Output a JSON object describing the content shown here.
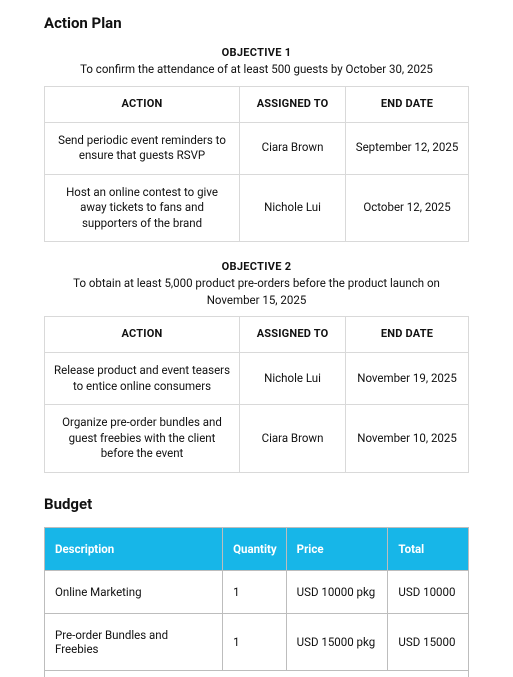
{
  "actionPlan": {
    "title": "Action Plan",
    "columns": {
      "action": "ACTION",
      "assigned": "ASSIGNED TO",
      "end": "END DATE"
    },
    "objectives": [
      {
        "label": "OBJECTIVE 1",
        "desc": "To confirm the attendance of at least 500 guests by October 30, 2025",
        "rows": [
          {
            "action": "Send periodic event reminders to ensure that guests RSVP",
            "assigned": "Ciara Brown",
            "end": "September 12, 2025"
          },
          {
            "action": "Host an online contest to give away tickets to fans and supporters of the brand",
            "assigned": "Nichole Lui",
            "end": "October 12, 2025"
          }
        ]
      },
      {
        "label": "OBJECTIVE 2",
        "desc": "To obtain at least 5,000 product pre-orders before the product launch on November 15, 2025",
        "rows": [
          {
            "action": "Release product and event teasers to entice online consumers",
            "assigned": "Nichole Lui",
            "end": "November 19, 2025"
          },
          {
            "action": "Organize pre-order bundles and guest freebies with the client before the event",
            "assigned": "Ciara Brown",
            "end": "November 10, 2025"
          }
        ]
      }
    ]
  },
  "budget": {
    "title": "Budget",
    "header_bg": "#17b6e8",
    "header_fg": "#ffffff",
    "columns": {
      "desc": "Description",
      "qty": "Quantity",
      "price": "Price",
      "total": "Total"
    },
    "rows": [
      {
        "desc": "Online Marketing",
        "qty": "1",
        "price": "USD 10000 pkg",
        "total": "USD 10000"
      },
      {
        "desc": "Pre-order Bundles and Freebies",
        "qty": "1",
        "price": "USD 15000 pkg",
        "total": "USD 15000"
      }
    ]
  }
}
